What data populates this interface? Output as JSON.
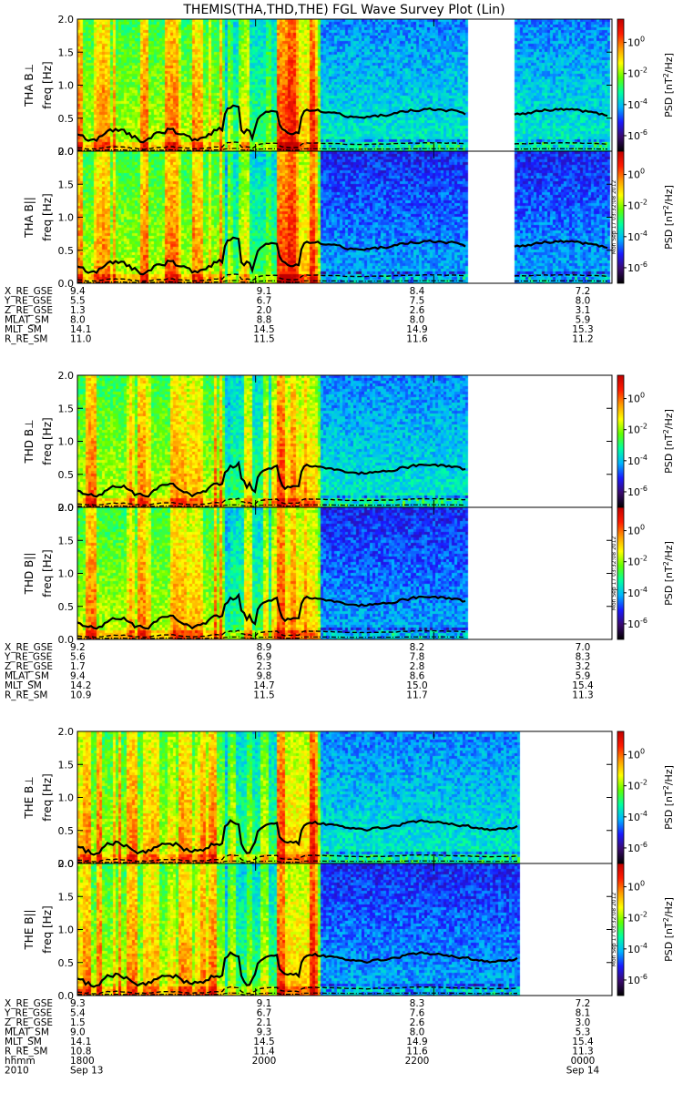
{
  "chart_data": {
    "type": "heatmap",
    "title": "THEMIS(THA,THD,THE) FGL Wave Survey Plot (Lin)",
    "freq_ylabel": "freq [Hz]",
    "ylim": [
      0,
      2.0
    ],
    "yticks": [
      "0.0",
      "0.5",
      "1.0",
      "1.5",
      "2.0"
    ],
    "colorbar": {
      "label": "PSD [nT²/Hz]",
      "label_parts": [
        "PSD [nT",
        "2",
        "/Hz]"
      ],
      "scale": "log",
      "range_log10": [
        -7,
        1.5
      ],
      "ticks": [
        {
          "base": "10",
          "exp": "0",
          "value": 0
        },
        {
          "base": "10",
          "exp": "-2",
          "value": -2
        },
        {
          "base": "10",
          "exp": "-4",
          "value": -4
        },
        {
          "base": "10",
          "exp": "-6",
          "value": -6
        }
      ],
      "colors": [
        "#000000",
        "#3a0a6e",
        "#1a1aff",
        "#00b4ff",
        "#00ffa0",
        "#60ff00",
        "#ffff00",
        "#ff9a00",
        "#ff1a00",
        "#c00000"
      ]
    },
    "stamp": "Mon Sep 17 03:32:08 2012",
    "time_axis": {
      "range_hhmm": [
        1800,
        2400
      ],
      "tick_values": [
        1800,
        2000,
        2200,
        2400
      ],
      "label_rows": [
        {
          "name": "hhmm",
          "values": [
            "1800",
            "2000",
            "2200",
            "0000"
          ]
        },
        {
          "name": "2010",
          "values": [
            "Sep 13",
            "",
            "",
            "Sep 14"
          ]
        }
      ]
    },
    "panels": [
      {
        "probe": "THA",
        "data_gaps_hhmm": [
          [
            2223,
            2253
          ]
        ],
        "data_end_hhmm": 2358,
        "components": [
          {
            "label": "THA B⊥",
            "name": "perp"
          },
          {
            "label": "THA B||",
            "name": "par"
          }
        ],
        "ephemeris": [
          {
            "name": "X_RE_GSE",
            "values": [
              "9.4",
              "9.1",
              "8.4",
              "7.2"
            ]
          },
          {
            "name": "Y_RE_GSE",
            "values": [
              "5.5",
              "6.7",
              "7.5",
              "8.0"
            ]
          },
          {
            "name": "Z_RE_GSE",
            "values": [
              "1.3",
              "2.0",
              "2.6",
              "3.1"
            ]
          },
          {
            "name": "MLAT_SM",
            "values": [
              "8.0",
              "8.8",
              "8.0",
              "5.9"
            ]
          },
          {
            "name": "MLT_SM",
            "values": [
              "14.1",
              "14.5",
              "14.9",
              "15.3"
            ]
          },
          {
            "name": "R_RE_SM",
            "values": [
              "11.0",
              "11.5",
              "11.6",
              "11.2"
            ]
          }
        ]
      },
      {
        "probe": "THD",
        "data_gaps_hhmm": [],
        "data_end_hhmm": 2223,
        "components": [
          {
            "label": "THD B⊥",
            "name": "perp"
          },
          {
            "label": "THD B||",
            "name": "par"
          }
        ],
        "ephemeris": [
          {
            "name": "X_RE_GSE",
            "values": [
              "9.2",
              "8.9",
              "8.2",
              "7.0"
            ]
          },
          {
            "name": "Y_RE_GSE",
            "values": [
              "5.6",
              "6.9",
              "7.8",
              "8.3"
            ]
          },
          {
            "name": "Z_RE_GSE",
            "values": [
              "1.7",
              "2.3",
              "2.8",
              "3.2"
            ]
          },
          {
            "name": "MLAT_SM",
            "values": [
              "9.4",
              "9.8",
              "8.6",
              "5.9"
            ]
          },
          {
            "name": "MLT_SM",
            "values": [
              "14.2",
              "14.7",
              "15.0",
              "15.4"
            ]
          },
          {
            "name": "R_RE_SM",
            "values": [
              "10.9",
              "11.5",
              "11.7",
              "11.3"
            ]
          }
        ]
      },
      {
        "probe": "THE",
        "data_gaps_hhmm": [],
        "data_end_hhmm": 2257,
        "components": [
          {
            "label": "THE B⊥",
            "name": "perp"
          },
          {
            "label": "THE B||",
            "name": "par"
          }
        ],
        "ephemeris": [
          {
            "name": "X_RE_GSE",
            "values": [
              "9.3",
              "9.1",
              "8.3",
              "7.2"
            ]
          },
          {
            "name": "Y_RE_GSE",
            "values": [
              "5.4",
              "6.7",
              "7.6",
              "8.1"
            ]
          },
          {
            "name": "Z_RE_GSE",
            "values": [
              "1.5",
              "2.1",
              "2.6",
              "3.0"
            ]
          },
          {
            "name": "MLAT_SM",
            "values": [
              "9.0",
              "9.3",
              "8.0",
              "5.3"
            ]
          },
          {
            "name": "MLT_SM",
            "values": [
              "14.1",
              "14.5",
              "14.9",
              "15.4"
            ]
          },
          {
            "name": "R_RE_SM",
            "values": [
              "10.8",
              "11.4",
              "11.6",
              "11.3"
            ]
          }
        ]
      }
    ]
  }
}
